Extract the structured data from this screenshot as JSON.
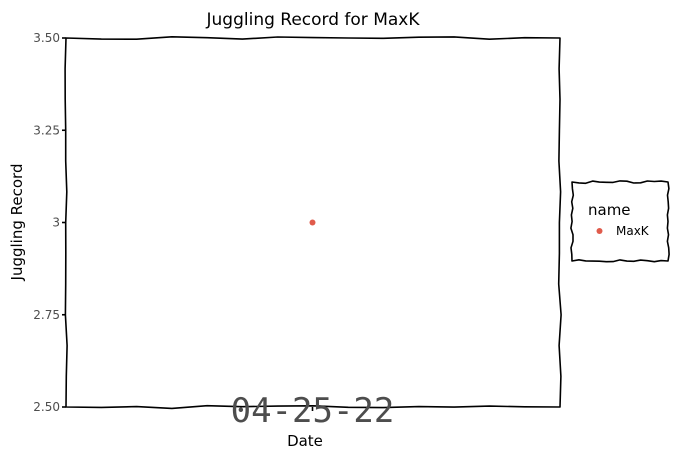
{
  "chart_data": {
    "type": "scatter",
    "title": "Juggling Record for MaxK",
    "xlabel": "Date",
    "ylabel": "Juggling Record",
    "x_ticks": [
      "04-25-22"
    ],
    "y_ticks": [
      {
        "value": 2.5,
        "label": "2.50"
      },
      {
        "value": 2.75,
        "label": "2.75"
      },
      {
        "value": 3.0,
        "label": "3"
      },
      {
        "value": 3.25,
        "label": "3.25"
      },
      {
        "value": 3.5,
        "label": "3.50"
      }
    ],
    "ylim": [
      2.5,
      3.5
    ],
    "grid": false,
    "legend": {
      "title": "name",
      "placement": "right",
      "entries": [
        {
          "label": "MaxK",
          "color": "#e05b4b"
        }
      ]
    },
    "series": [
      {
        "name": "MaxK",
        "color": "#e05b4b",
        "points": [
          {
            "x": "04-25-22",
            "y": 3
          }
        ]
      }
    ]
  }
}
